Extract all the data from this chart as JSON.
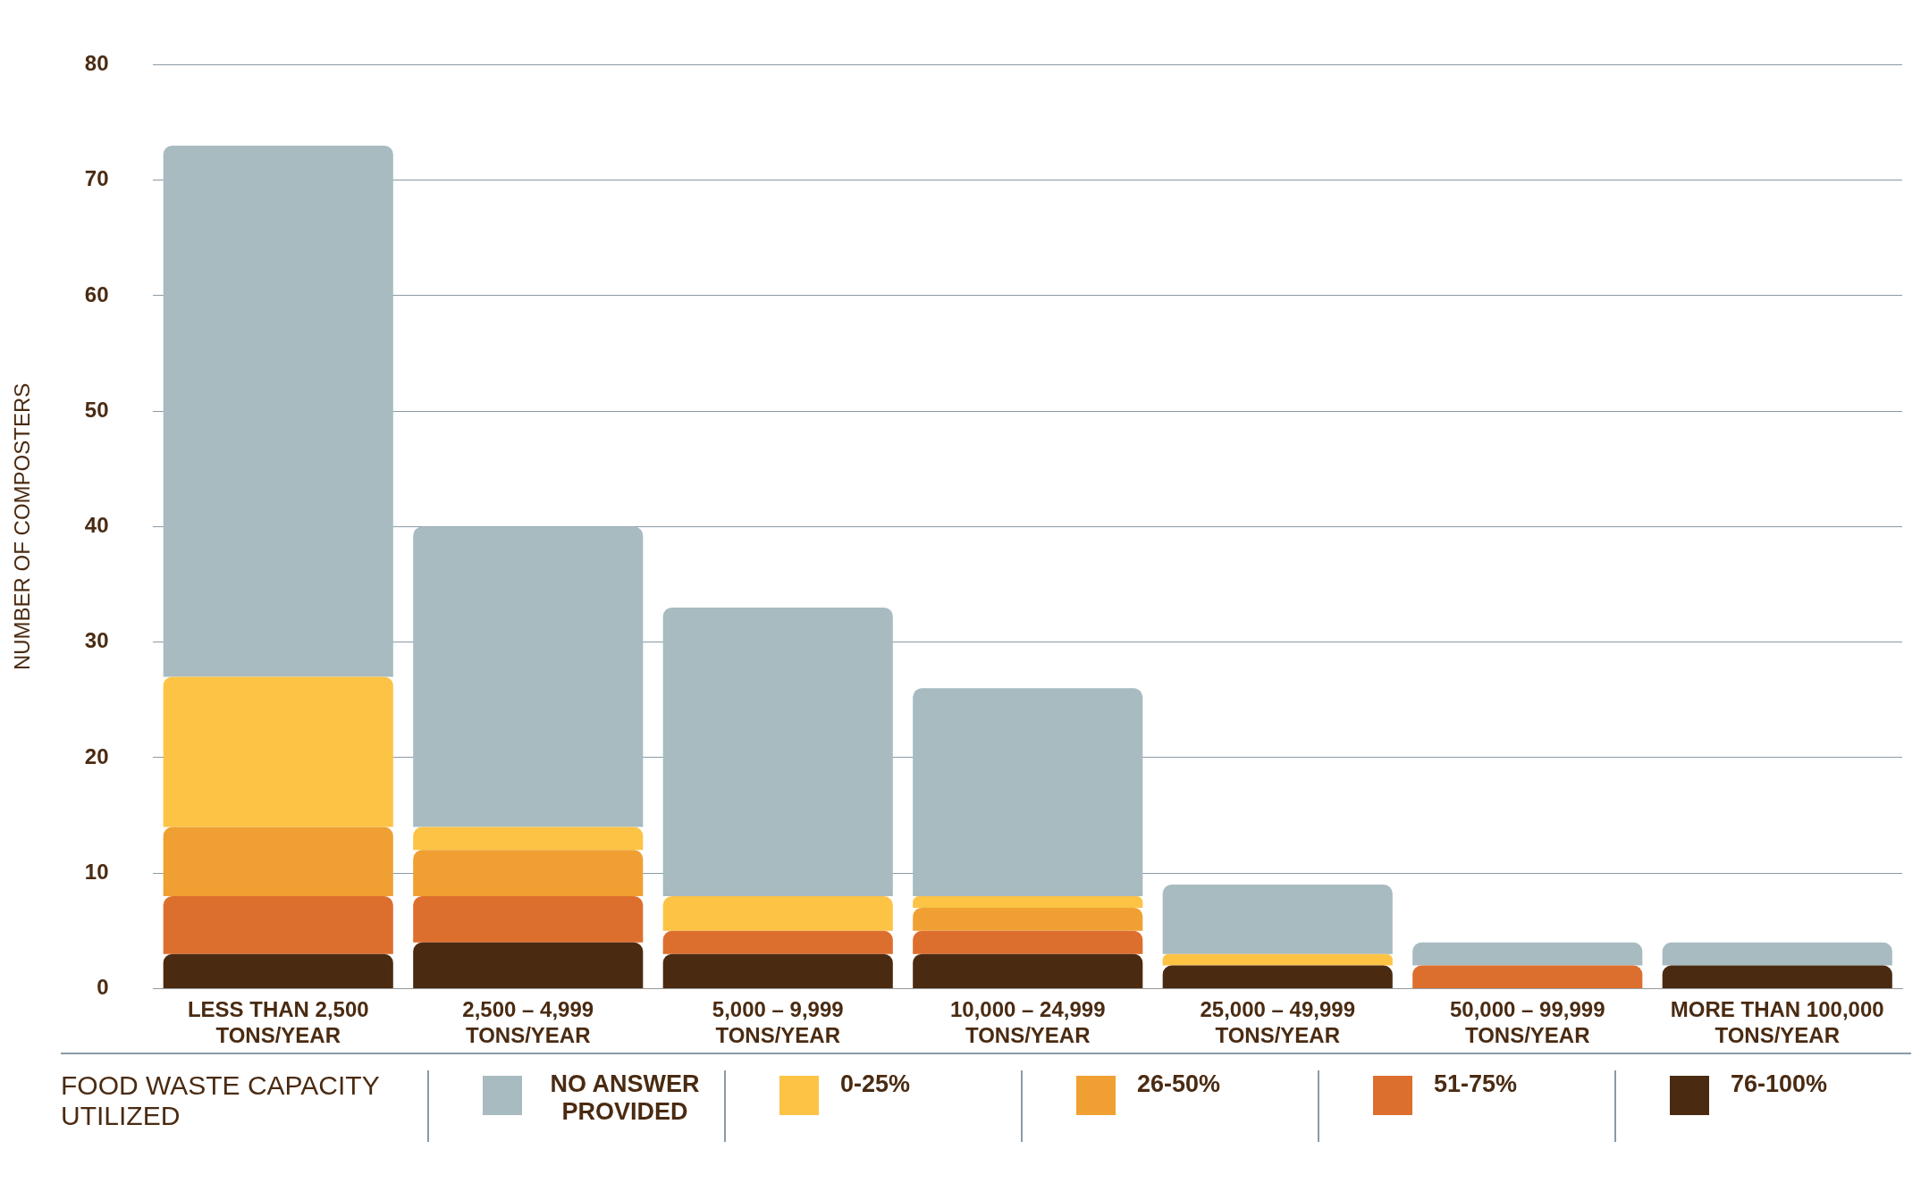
{
  "chart_data": {
    "type": "bar",
    "stacked": true,
    "ylabel": "NUMBER OF COMPOSTERS",
    "legend_title": "FOOD WASTE CAPACITY UTILIZED",
    "legend": "bottom",
    "grid": "y",
    "categories": [
      "LESS THAN 2,500 TONS/YEAR",
      "2,500 – 4,999 TONS/YEAR",
      "5,000 – 9,999 TONS/YEAR",
      "10,000 – 24,999 TONS/YEAR",
      "25,000 – 49,999 TONS/YEAR",
      "50,000 – 99,999 TONS/YEAR",
      "MORE THAN 100,000 TONS/YEAR"
    ],
    "ylim": [
      0,
      80
    ],
    "yticks": [
      0,
      10,
      20,
      30,
      40,
      50,
      60,
      70,
      80
    ],
    "series": [
      {
        "name": "76-100%",
        "color": "#4a2b12",
        "values": [
          3,
          4,
          3,
          3,
          2,
          0,
          2
        ]
      },
      {
        "name": "51-75%",
        "color": "#dd6f2e",
        "values": [
          5,
          4,
          2,
          2,
          0,
          2,
          0
        ]
      },
      {
        "name": "26-50%",
        "color": "#f0a033",
        "values": [
          6,
          4,
          0,
          2,
          0,
          0,
          0
        ]
      },
      {
        "name": "0-25%",
        "color": "#fcc345",
        "values": [
          13,
          2,
          3,
          1,
          1,
          0,
          0
        ]
      },
      {
        "name": "NO ANSWER PROVIDED",
        "color": "#a7bbc1",
        "values": [
          46,
          26,
          25,
          18,
          6,
          2,
          2
        ]
      }
    ]
  }
}
